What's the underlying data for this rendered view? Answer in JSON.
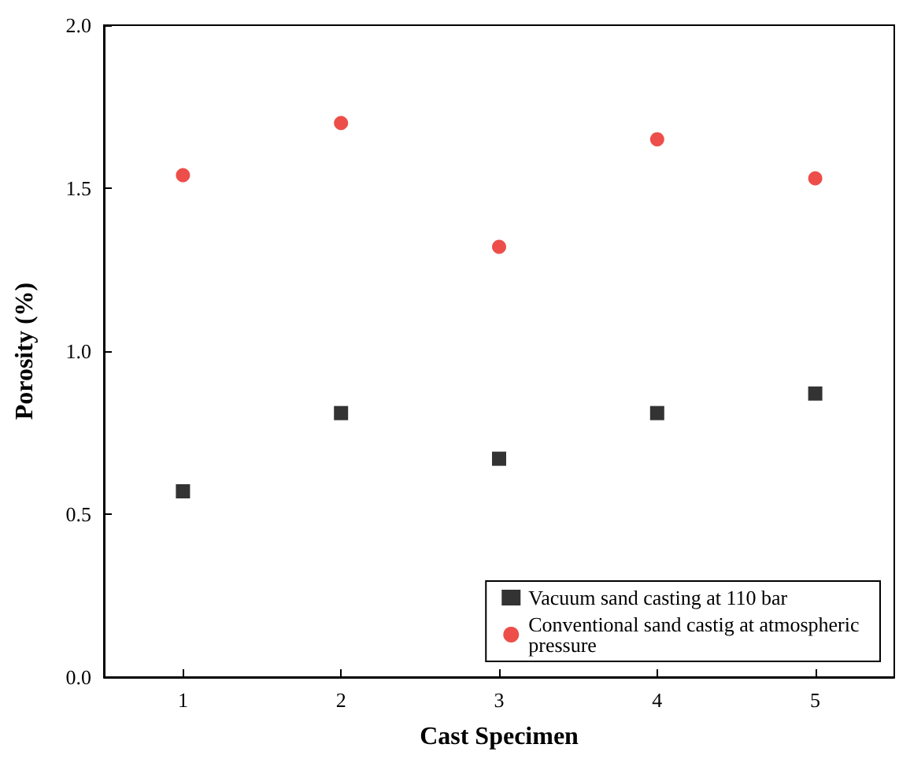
{
  "chart_data": {
    "type": "scatter",
    "xlabel": "Cast Specimen",
    "ylabel": "Porosity (%)",
    "x": [
      1,
      2,
      3,
      4,
      5
    ],
    "series": [
      {
        "name": "Vacuum sand casting at 110 bar",
        "color": "#000000",
        "marker": "square",
        "values": [
          0.57,
          0.81,
          0.67,
          0.81,
          0.87
        ]
      },
      {
        "name": "Conventional sand castig at atmospheric pressure",
        "color": "#e8221c",
        "marker": "circle",
        "values": [
          1.54,
          1.7,
          1.32,
          1.65,
          1.53
        ]
      }
    ],
    "xlim": [
      0.5,
      5.5
    ],
    "xticks": [
      1,
      2,
      3,
      4,
      5
    ],
    "ylim": [
      0,
      2
    ],
    "yticks": [
      {
        "value": 0,
        "label": "0.0"
      },
      {
        "value": 0.5,
        "label": "0.5"
      },
      {
        "value": 1,
        "label": "1.0"
      },
      {
        "value": 1.5,
        "label": "1.5"
      },
      {
        "value": 2,
        "label": "2.0"
      }
    ],
    "grid": false,
    "legend": "bottom right"
  }
}
